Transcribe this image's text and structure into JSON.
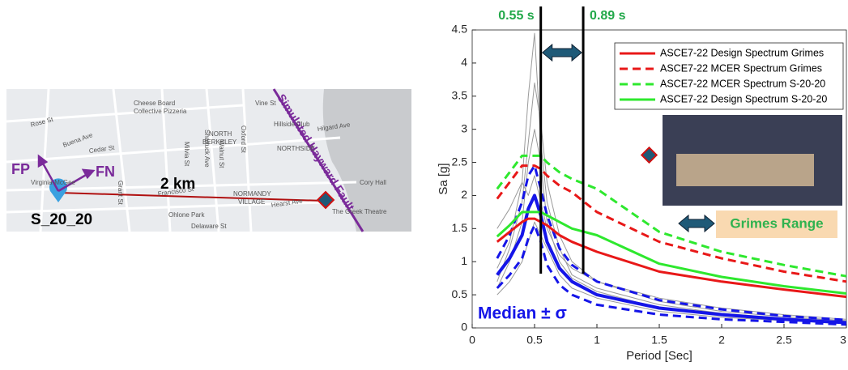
{
  "map": {
    "fp": "FP",
    "fn": "FN",
    "distance": "2 km",
    "station": "S_20_20",
    "fault": "Simulated Hayward Fault",
    "labels": [
      "Cheese Board",
      "Collective Pizzeria",
      "NORTH",
      "BERKELEY",
      "Cedar St",
      "NORTHSIDE",
      "NORMANDY",
      "VILLAGE",
      "Ohlone Park",
      "Delaware St",
      "Cory Hall",
      "The Greek Theatre",
      "Shattuck Ave",
      "Oxford St",
      "Rose St",
      "Hearst Ave",
      "Virginia-McGee",
      "Vine St",
      "Hilgard Ave",
      "Francisco St",
      "Hillside Club",
      "Grant St",
      "Milvia St",
      "Walnut St",
      "Buena Ave"
    ]
  },
  "chart_data": {
    "type": "line",
    "xlabel": "Period [Sec]",
    "ylabel": "Sa [g]",
    "xlim": [
      0,
      3
    ],
    "xticks": [
      0,
      0.5,
      1,
      1.5,
      2,
      2.5,
      3
    ],
    "ylim": [
      0,
      4.5
    ],
    "yticks": [
      0,
      0.5,
      1,
      1.5,
      2,
      2.5,
      3,
      3.5,
      4,
      4.5
    ],
    "legend": "upper right",
    "x": [
      0.2,
      0.3,
      0.4,
      0.45,
      0.5,
      0.55,
      0.6,
      0.7,
      0.8,
      1.0,
      1.5,
      2.0,
      2.5,
      3.0
    ],
    "series": [
      {
        "color": "#9a9a9a",
        "style": "solid",
        "linewidth": 1,
        "values": [
          0.9,
          1.3,
          2.2,
          3.5,
          4.45,
          2.8,
          1.9,
          1.2,
          0.8,
          0.6,
          0.35,
          0.22,
          0.15,
          0.1
        ]
      },
      {
        "color": "#9a9a9a",
        "style": "solid",
        "linewidth": 1,
        "values": [
          0.6,
          1.0,
          1.6,
          2.5,
          3.0,
          2.5,
          1.6,
          1.0,
          0.75,
          0.55,
          0.3,
          0.2,
          0.14,
          0.09
        ]
      },
      {
        "color": "#9a9a9a",
        "style": "solid",
        "linewidth": 1,
        "values": [
          1.5,
          1.8,
          2.2,
          2.0,
          2.3,
          1.9,
          1.5,
          1.1,
          0.9,
          0.7,
          0.45,
          0.3,
          0.2,
          0.13
        ]
      },
      {
        "color": "#9a9a9a",
        "style": "solid",
        "linewidth": 1,
        "values": [
          0.5,
          0.7,
          1.0,
          1.3,
          1.6,
          1.4,
          1.2,
          0.8,
          0.6,
          0.45,
          0.25,
          0.16,
          0.11,
          0.07
        ]
      },
      {
        "color": "#9a9a9a",
        "style": "solid",
        "linewidth": 1,
        "values": [
          0.7,
          1.2,
          1.9,
          2.8,
          3.7,
          3.1,
          2.2,
          1.4,
          1.0,
          0.7,
          0.4,
          0.25,
          0.17,
          0.11
        ]
      },
      {
        "color": "#1515e8",
        "style": "dashed",
        "linewidth": 3,
        "values": [
          1.05,
          1.4,
          1.9,
          2.3,
          2.45,
          2.1,
          1.7,
          1.2,
          0.95,
          0.7,
          0.42,
          0.28,
          0.18,
          0.12
        ]
      },
      {
        "color": "#1515e8",
        "style": "dashed",
        "linewidth": 3,
        "values": [
          0.6,
          0.8,
          1.05,
          1.35,
          1.55,
          1.3,
          0.95,
          0.65,
          0.5,
          0.35,
          0.2,
          0.13,
          0.09,
          0.05
        ]
      },
      {
        "color": "#1515e8",
        "style": "solid",
        "linewidth": 4,
        "values": [
          0.8,
          1.05,
          1.4,
          1.8,
          2.0,
          1.7,
          1.3,
          0.9,
          0.7,
          0.5,
          0.3,
          0.2,
          0.13,
          0.08
        ]
      },
      {
        "name": "ASCE7-22 Design Spectrum Grimes",
        "color": "#e81818",
        "style": "solid",
        "linewidth": 3,
        "values": [
          1.3,
          1.45,
          1.6,
          1.65,
          1.65,
          1.6,
          1.55,
          1.4,
          1.3,
          1.15,
          0.85,
          0.7,
          0.58,
          0.47
        ]
      },
      {
        "name": "ASCE7-22 MCER Spectrum Grimes",
        "color": "#e81818",
        "style": "dashed",
        "linewidth": 3,
        "values": [
          1.95,
          2.2,
          2.45,
          2.45,
          2.45,
          2.4,
          2.3,
          2.15,
          2.05,
          1.75,
          1.3,
          1.05,
          0.85,
          0.7
        ]
      },
      {
        "name": "ASCE7-22 MCER Spectrum S-20-20",
        "color": "#2ee82e",
        "style": "dashed",
        "linewidth": 3,
        "values": [
          2.1,
          2.35,
          2.6,
          2.6,
          2.6,
          2.6,
          2.5,
          2.35,
          2.25,
          2.1,
          1.45,
          1.15,
          0.95,
          0.78
        ]
      },
      {
        "name": "ASCE7-22 Design Spectrum S-20-20",
        "color": "#2ee82e",
        "style": "solid",
        "linewidth": 3,
        "values": [
          1.38,
          1.55,
          1.75,
          1.75,
          1.75,
          1.75,
          1.7,
          1.6,
          1.5,
          1.4,
          0.97,
          0.77,
          0.63,
          0.52
        ]
      }
    ],
    "vlines": [
      {
        "value": 0.55,
        "label": "0.55 s"
      },
      {
        "value": 0.89,
        "label": "0.89 s"
      }
    ],
    "median_label": "Median ± σ",
    "range_label": "Grimes Range"
  }
}
